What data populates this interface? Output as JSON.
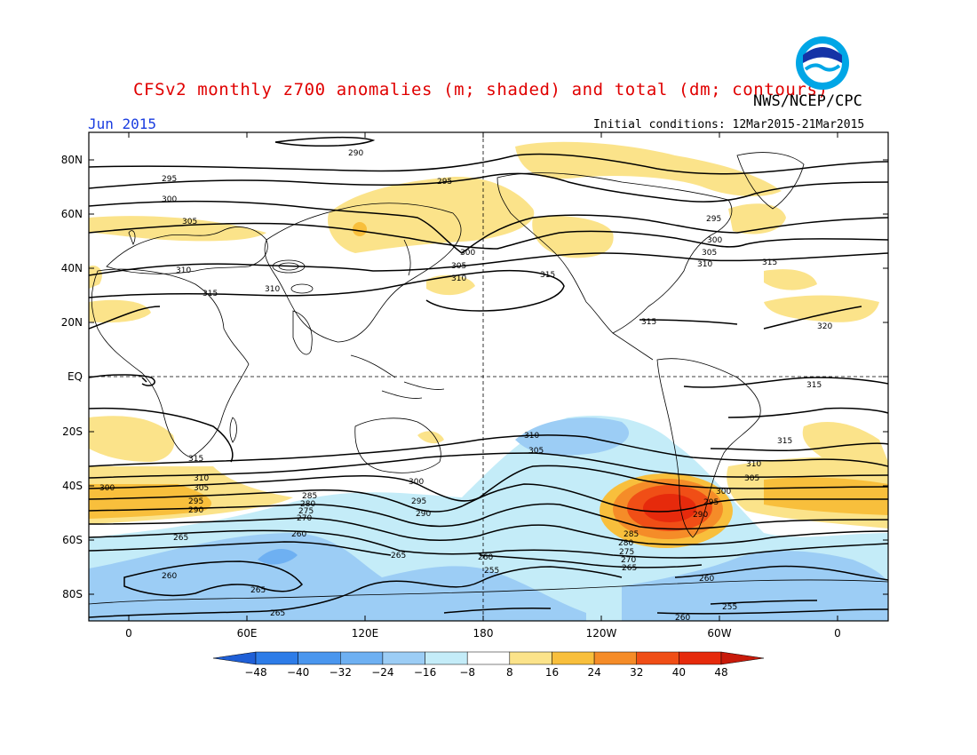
{
  "title": "CFSv2 monthly z700 anomalies (m; shaded) and total (dm; contours)",
  "agency": "NWS/NCEP/CPC",
  "period": "Jun 2015",
  "initial_conditions": "Initial conditions: 12Mar2015-21Mar2015",
  "logo_text": "NOAA",
  "lat_labels": [
    "80N",
    "60N",
    "40N",
    "20N",
    "EQ",
    "20S",
    "40S",
    "60S",
    "80S"
  ],
  "lon_labels": [
    "0",
    "60E",
    "120E",
    "180",
    "120W",
    "60W",
    "0"
  ],
  "colorbar": {
    "ticks": [
      "-48",
      "-40",
      "-32",
      "-24",
      "-16",
      "-8",
      "8",
      "16",
      "24",
      "32",
      "40",
      "48"
    ],
    "colors": [
      "#1f5fd6",
      "#2d7ce8",
      "#4a96ee",
      "#6eb0f2",
      "#9ccdf5",
      "#c4ecf8",
      "#ffffff",
      "#fbe38a",
      "#f8bf3c",
      "#f58c28",
      "#f04e16",
      "#e62a0c",
      "#c81a0a"
    ]
  },
  "colors": {
    "title": "#e00000",
    "period": "#1a3de0",
    "land_outline": "#000000"
  },
  "contour_labels": [
    {
      "text": "290"
    },
    {
      "text": "295"
    },
    {
      "text": "300"
    },
    {
      "text": "305"
    },
    {
      "text": "310"
    },
    {
      "text": "315"
    },
    {
      "text": "320"
    },
    {
      "text": "285"
    },
    {
      "text": "280"
    },
    {
      "text": "275"
    },
    {
      "text": "270"
    },
    {
      "text": "265"
    },
    {
      "text": "260"
    },
    {
      "text": "255"
    }
  ]
}
